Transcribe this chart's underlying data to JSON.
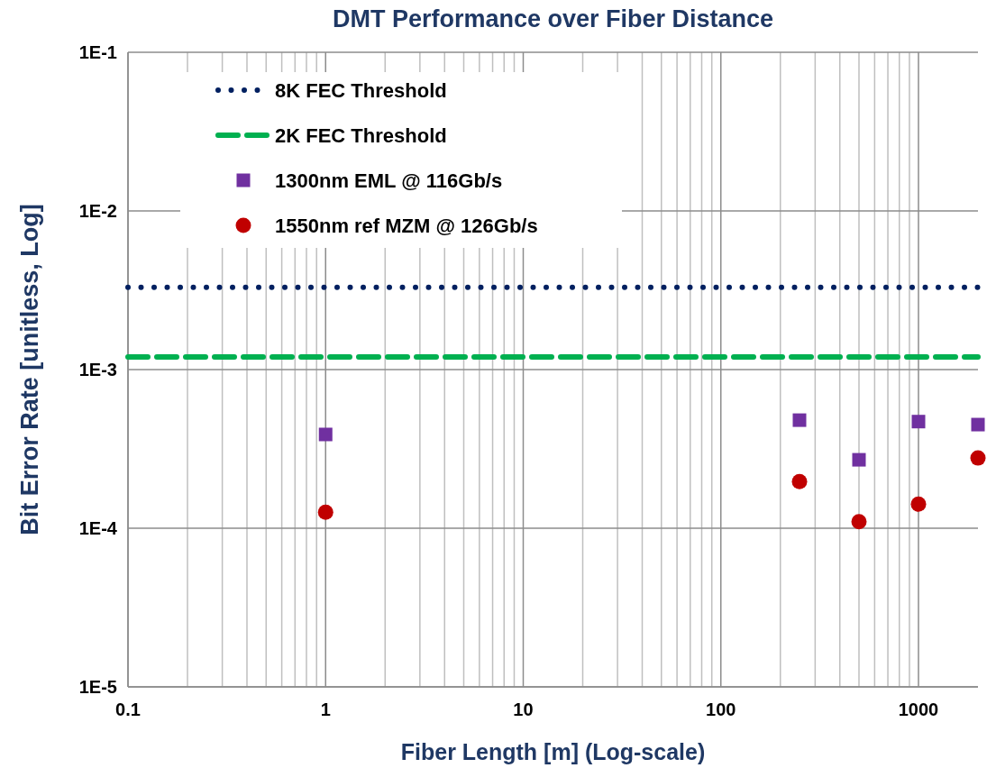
{
  "chart_data": {
    "type": "scatter",
    "title": "DMT Performance over Fiber Distance",
    "xlabel": "Fiber Length [m] (Log-scale)",
    "ylabel": "Bit Error Rate [unitless, Log]",
    "log": "xy",
    "grid": true,
    "legend": "top left",
    "xlim": [
      0.1,
      2000
    ],
    "xticks": [
      0.1,
      1,
      10,
      100,
      1000
    ],
    "ylim": [
      1e-05,
      0.1
    ],
    "yticks": [
      {
        "value": 0.1,
        "label": "1E-1"
      },
      {
        "value": 0.01,
        "label": "1E-2"
      },
      {
        "value": 0.001,
        "label": "1E-3"
      },
      {
        "value": 0.0001,
        "label": "1E-4"
      },
      {
        "value": 1e-05,
        "label": "1E-5"
      }
    ],
    "series": [
      {
        "name": "8K FEC Threshold",
        "type": "line",
        "line_style": "dotted",
        "marker": "none",
        "color": "#002060",
        "x": [
          0.1,
          2000
        ],
        "values": [
          0.0033,
          0.0033
        ]
      },
      {
        "name": "2K FEC Threshold",
        "type": "line",
        "line_style": "dashed",
        "marker": "none",
        "color": "#00b050",
        "x": [
          0.1,
          2000
        ],
        "values": [
          0.0012,
          0.0012
        ]
      },
      {
        "name": "1300nm EML @ 116Gb/s",
        "type": "scatter",
        "marker": "square",
        "color": "#7030a0",
        "x": [
          1,
          250,
          500,
          1000,
          2000
        ],
        "values": [
          0.00039,
          0.00048,
          0.00027,
          0.00047,
          0.00045
        ]
      },
      {
        "name": "1550nm ref MZM @ 126Gb/s",
        "type": "scatter",
        "marker": "circle",
        "color": "#c00000",
        "x": [
          1,
          250,
          500,
          1000,
          2000
        ],
        "values": [
          0.000126,
          0.000197,
          0.00011,
          0.000142,
          0.000277
        ]
      }
    ]
  }
}
